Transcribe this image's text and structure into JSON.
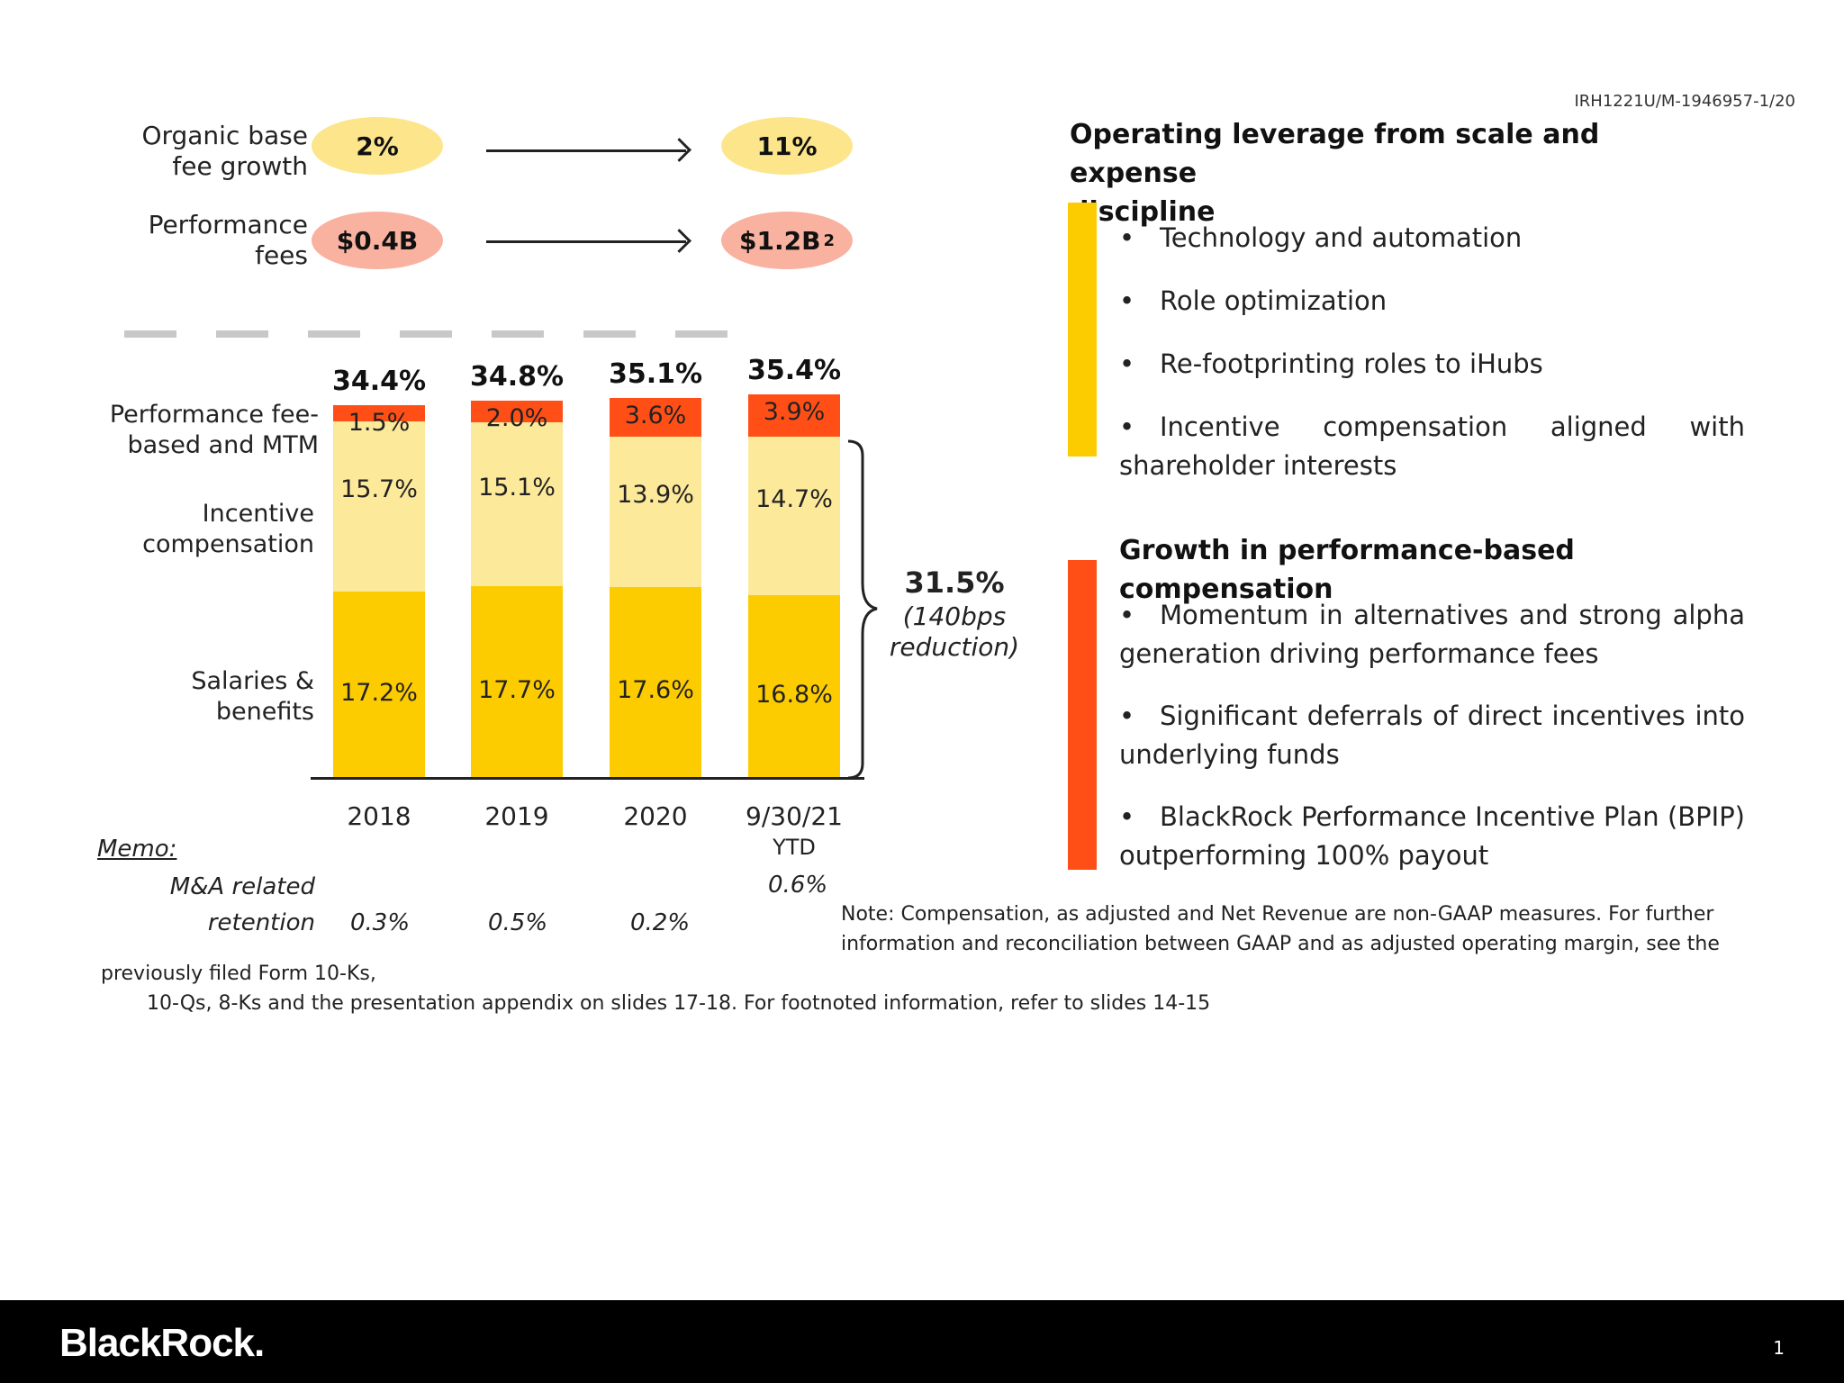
{
  "doc_ref": "IRH1221U/M-1946957-1/20",
  "metrics": [
    {
      "label_line1": "Organic base",
      "label_line2": "fee growth",
      "from": "2%",
      "to": "11%",
      "to_sup": ""
    },
    {
      "label_line1": "Performance",
      "label_line2": "fees",
      "from": "$0.4B",
      "to": "$1.2B",
      "to_sup": "2"
    }
  ],
  "chart_data": {
    "type": "bar",
    "stacked": true,
    "categories": [
      "2018",
      "2019",
      "2020",
      "9/30/21"
    ],
    "category_sublabels": [
      "",
      "",
      "",
      "YTD"
    ],
    "series": [
      {
        "name": "Salaries & benefits",
        "values": [
          17.2,
          17.7,
          17.6,
          16.8
        ],
        "color": "#fdcc00"
      },
      {
        "name": "Incentive compensation",
        "values": [
          15.7,
          15.1,
          13.9,
          14.7
        ],
        "color": "#fde99a"
      },
      {
        "name": "Performance fee-based and MTM",
        "values": [
          1.5,
          2.0,
          3.6,
          3.9
        ],
        "color": "#ff4f17"
      }
    ],
    "value_labels": [
      [
        "17.2%",
        "17.7%",
        "17.6%",
        "16.8%"
      ],
      [
        "15.7%",
        "15.1%",
        "13.9%",
        "14.7%"
      ],
      [
        "1.5%",
        "2.0%",
        "3.6%",
        "3.9%"
      ]
    ],
    "totals": [
      "34.4%",
      "34.8%",
      "35.1%",
      "35.4%"
    ],
    "total_values": [
      34.4,
      34.8,
      35.1,
      35.4
    ],
    "segment_labels": [
      [
        "Performance fee-",
        "based and MTM"
      ],
      [
        "Incentive",
        "compensation"
      ],
      [
        "Salaries &",
        "benefits"
      ]
    ],
    "brace_value": "31.5%",
    "brace_note_1": "(140bps",
    "brace_note_2": "reduction)",
    "ylim": [
      0,
      36
    ]
  },
  "memo": {
    "title": "Memo:",
    "label_line1": "M&A related",
    "label_line2": "retention",
    "values": [
      "0.3%",
      "0.5%",
      "0.2%",
      "0.6%"
    ]
  },
  "note": {
    "line1": "Note: Compensation, as adjusted and Net Revenue are non-GAAP measures. For further",
    "line2": "information and reconciliation between GAAP and as adjusted operating margin, see the",
    "line3": "previously filed Form 10-Ks,",
    "line4": "10-Qs, 8-Ks  and the presentation appendix on slides 17-18. For footnoted information, refer to slides 14-15"
  },
  "right": {
    "section1": {
      "title_line1": "Operating leverage from scale and expense",
      "title_line2": "discipline",
      "color": "#fdcc00",
      "bullets": [
        "Technology and automation",
        "Role optimization",
        "Re-footprinting roles to iHubs",
        "Incentive compensation aligned with shareholder interests"
      ]
    },
    "section2": {
      "title": "Growth in performance-based compensation",
      "color": "#ff4f17",
      "bullets": [
        "Momentum in alternatives and strong alpha generation driving performance fees",
        "Significant deferrals of direct incentives into underlying funds",
        "BlackRock Performance Incentive Plan (BPIP) outperforming 100% payout"
      ]
    }
  },
  "footer": {
    "logo": "BlackRock.",
    "page": "1"
  }
}
